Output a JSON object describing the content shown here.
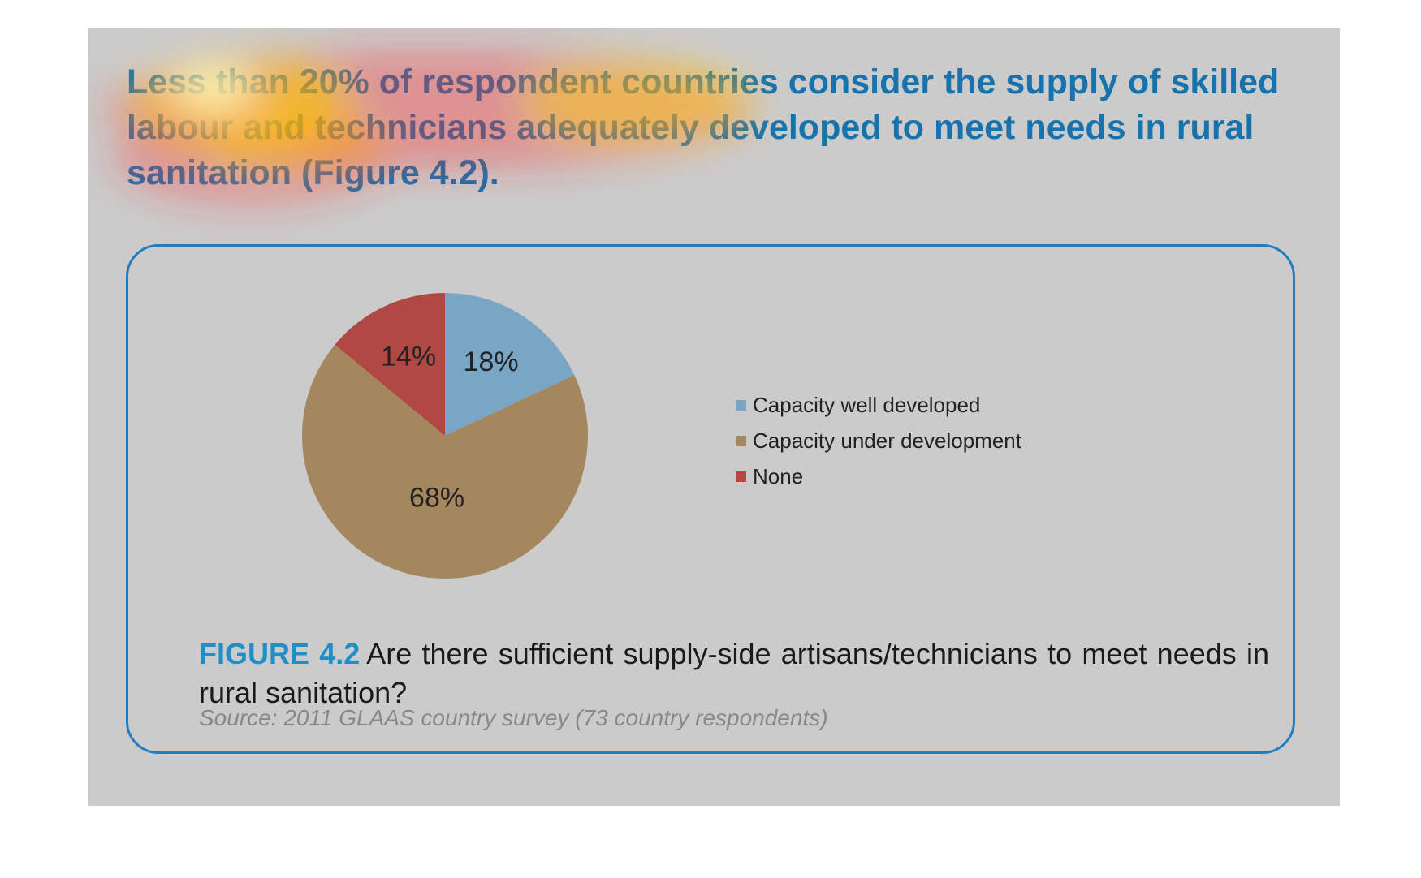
{
  "headline": "Less than 20% of respondent countries consider the supply of skilled labour and technicians adequately developed to meet needs in rural sanitation (Figure 4.2).",
  "figure": {
    "label": "FIGURE 4.2",
    "caption": "Are there sufficient supply-side artisans/technicians to meet needs in rural sanitation?",
    "source": "Source: 2011 GLAAS country survey (73 country respondents)"
  },
  "chart_data": {
    "type": "pie",
    "title": "",
    "slices": [
      {
        "label": "Capacity well developed",
        "value": 18,
        "display": "18%",
        "color": "#7aa6c6"
      },
      {
        "label": "Capacity under development",
        "value": 68,
        "display": "68%",
        "color": "#a4875f"
      },
      {
        "label": "None",
        "value": 14,
        "display": "14%",
        "color": "#b04844"
      }
    ],
    "legend_position": "right"
  },
  "colors": {
    "accent": "#1673ad",
    "figure_label": "#1f8fc6",
    "box_border": "#1f7dc0",
    "panel_background": "#cbcbcb"
  }
}
